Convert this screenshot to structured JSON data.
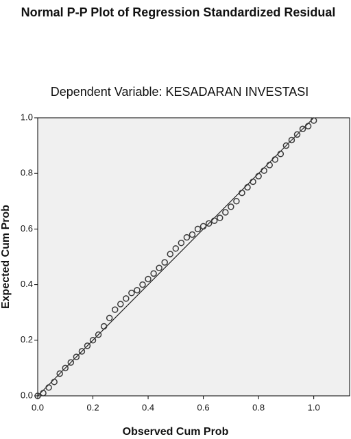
{
  "chart_data": {
    "type": "scatter",
    "title": "Normal P-P Plot of Regression Standardized Residual",
    "subtitle": "Dependent Variable: KESADARAN INVESTASI",
    "x_label": "Observed Cum Prob",
    "y_label": "Expected Cum Prob",
    "x": [
      0.0,
      0.02,
      0.04,
      0.06,
      0.08,
      0.1,
      0.12,
      0.14,
      0.16,
      0.18,
      0.2,
      0.22,
      0.24,
      0.26,
      0.28,
      0.3,
      0.32,
      0.34,
      0.36,
      0.38,
      0.4,
      0.42,
      0.44,
      0.46,
      0.48,
      0.5,
      0.52,
      0.54,
      0.56,
      0.58,
      0.6,
      0.62,
      0.64,
      0.66,
      0.68,
      0.7,
      0.72,
      0.74,
      0.76,
      0.78,
      0.8,
      0.82,
      0.84,
      0.86,
      0.88,
      0.9,
      0.92,
      0.94,
      0.96,
      0.98,
      1.0
    ],
    "values": [
      0.0,
      0.01,
      0.03,
      0.05,
      0.08,
      0.1,
      0.12,
      0.14,
      0.16,
      0.18,
      0.2,
      0.22,
      0.25,
      0.28,
      0.31,
      0.33,
      0.35,
      0.37,
      0.38,
      0.4,
      0.42,
      0.44,
      0.46,
      0.48,
      0.51,
      0.53,
      0.55,
      0.57,
      0.58,
      0.6,
      0.61,
      0.62,
      0.63,
      0.64,
      0.66,
      0.68,
      0.7,
      0.73,
      0.75,
      0.77,
      0.79,
      0.81,
      0.83,
      0.85,
      0.87,
      0.9,
      0.92,
      0.94,
      0.96,
      0.97,
      0.99
    ],
    "color": "#3a3a3a",
    "xlim": [
      0,
      1.13
    ],
    "ylim": [
      0,
      1
    ],
    "xticks": [
      {
        "value": 0,
        "label": "0.0"
      },
      0.2,
      0.4,
      0.6,
      0.8,
      {
        "value": 1,
        "label": "1.0"
      }
    ],
    "yticks": [
      {
        "value": 0,
        "label": "0.0"
      },
      0.2,
      0.4,
      0.6,
      0.8,
      {
        "value": 1,
        "label": "1.0"
      }
    ],
    "reference_line": true
  }
}
